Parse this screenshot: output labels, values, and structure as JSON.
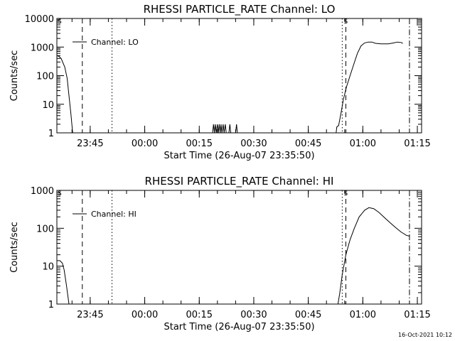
{
  "chart_data": [
    {
      "type": "line",
      "title": "RHESSI PARTICLE_RATE Channel: LO",
      "ylabel": "Counts/sec",
      "xlabel": "Start Time (26-Aug-07 23:35:50)",
      "yscale": "log",
      "ylim": [
        1,
        10000
      ],
      "xlim": [
        "23:35:50",
        "01:16:10"
      ],
      "x_ticks": [
        "23:45",
        "00:00",
        "00:15",
        "00:30",
        "00:45",
        "01:00",
        "01:15"
      ],
      "y_ticks": [
        "1",
        "10",
        "100",
        "1000",
        "10000"
      ],
      "legend": {
        "position": "top-left",
        "entries": [
          "Channel: LO"
        ]
      },
      "flags": {
        "left": "S",
        "right": "S"
      },
      "vlines": [
        {
          "t": "23:42:50",
          "style": "dashed"
        },
        {
          "t": "23:51:00",
          "style": "dotted"
        },
        {
          "t": "00:54:20",
          "style": "dotted"
        },
        {
          "t": "00:55:20",
          "style": "dashed"
        },
        {
          "t": "01:12:50",
          "style": "dash-dot"
        }
      ],
      "series": [
        {
          "name": "Channel: LO",
          "segments": [
            [
              [
                "23:35:50",
                500
              ],
              [
                "23:36:20",
                480
              ],
              [
                "23:37:00",
                400
              ],
              [
                "23:38:00",
                200
              ],
              [
                "23:38:40",
                80
              ],
              [
                "23:39:10",
                20
              ],
              [
                "23:39:40",
                5
              ],
              [
                "23:40:10",
                1
              ]
            ],
            [
              [
                "00:18:40",
                1
              ],
              [
                "00:18:55",
                2
              ],
              [
                "00:19:10",
                1
              ],
              [
                "00:19:25",
                2
              ],
              [
                "00:19:40",
                1
              ],
              [
                "00:20:00",
                2
              ],
              [
                "00:20:15",
                1
              ],
              [
                "00:20:30",
                2
              ],
              [
                "00:20:45",
                1
              ],
              [
                "00:21:00",
                2
              ],
              [
                "00:21:15",
                1
              ],
              [
                "00:21:35",
                2
              ],
              [
                "00:21:50",
                1
              ],
              [
                "00:22:10",
                2
              ],
              [
                "00:22:25",
                1
              ],
              [
                "00:23:10",
                1
              ],
              [
                "00:23:25",
                2
              ],
              [
                "00:23:40",
                1
              ],
              [
                "00:25:00",
                1
              ],
              [
                "00:25:15",
                2
              ],
              [
                "00:25:30",
                1
              ]
            ],
            [
              [
                "00:52:40",
                1
              ],
              [
                "00:52:50",
                1.6
              ],
              [
                "00:53:20",
                1.8
              ],
              [
                "00:54:00",
                5
              ],
              [
                "00:54:40",
                15
              ],
              [
                "00:55:30",
                40
              ],
              [
                "00:56:30",
                100
              ],
              [
                "00:57:30",
                250
              ],
              [
                "00:58:30",
                600
              ],
              [
                "00:59:30",
                1100
              ],
              [
                "01:00:30",
                1400
              ],
              [
                "01:01:30",
                1500
              ],
              [
                "01:02:30",
                1500
              ],
              [
                "01:03:30",
                1350
              ],
              [
                "01:05:00",
                1300
              ],
              [
                "01:07:00",
                1300
              ],
              [
                "01:08:30",
                1400
              ],
              [
                "01:09:30",
                1500
              ],
              [
                "01:10:30",
                1450
              ],
              [
                "01:11:00",
                1350
              ]
            ]
          ]
        }
      ]
    },
    {
      "type": "line",
      "title": "RHESSI PARTICLE_RATE Channel: HI",
      "ylabel": "Counts/sec",
      "xlabel": "Start Time (26-Aug-07 23:35:50)",
      "yscale": "log",
      "ylim": [
        1,
        1000
      ],
      "xlim": [
        "23:35:50",
        "01:16:10"
      ],
      "x_ticks": [
        "23:45",
        "00:00",
        "00:15",
        "00:30",
        "00:45",
        "01:00",
        "01:15"
      ],
      "y_ticks": [
        "1",
        "10",
        "100",
        "1000"
      ],
      "legend": {
        "position": "top-left",
        "entries": [
          "Channel: HI"
        ]
      },
      "flags": {
        "left": "S",
        "right": "S"
      },
      "vlines": [
        {
          "t": "23:42:50",
          "style": "dashed"
        },
        {
          "t": "23:51:00",
          "style": "dotted"
        },
        {
          "t": "00:54:20",
          "style": "dotted"
        },
        {
          "t": "00:55:20",
          "style": "dashed"
        },
        {
          "t": "01:12:50",
          "style": "dash-dot"
        }
      ],
      "series": [
        {
          "name": "Channel: HI",
          "segments": [
            [
              [
                "23:35:50",
                14
              ],
              [
                "23:36:40",
                14
              ],
              [
                "23:37:20",
                12
              ],
              [
                "23:37:50",
                8
              ],
              [
                "23:38:30",
                3
              ],
              [
                "23:39:10",
                1
              ]
            ],
            [
              [
                "00:53:10",
                1
              ],
              [
                "00:53:40",
                2
              ],
              [
                "00:54:20",
                6
              ],
              [
                "00:55:20",
                20
              ],
              [
                "00:56:30",
                50
              ],
              [
                "00:57:40",
                100
              ],
              [
                "00:59:00",
                200
              ],
              [
                "01:00:30",
                300
              ],
              [
                "01:01:40",
                350
              ],
              [
                "01:03:00",
                330
              ],
              [
                "01:04:30",
                260
              ],
              [
                "01:06:00",
                190
              ],
              [
                "01:07:30",
                140
              ],
              [
                "01:09:00",
                105
              ],
              [
                "01:10:30",
                80
              ],
              [
                "01:12:00",
                65
              ],
              [
                "01:12:50",
                62
              ]
            ]
          ]
        }
      ]
    }
  ],
  "footer": {
    "timestamp": "16-Oct-2021 10:12"
  }
}
